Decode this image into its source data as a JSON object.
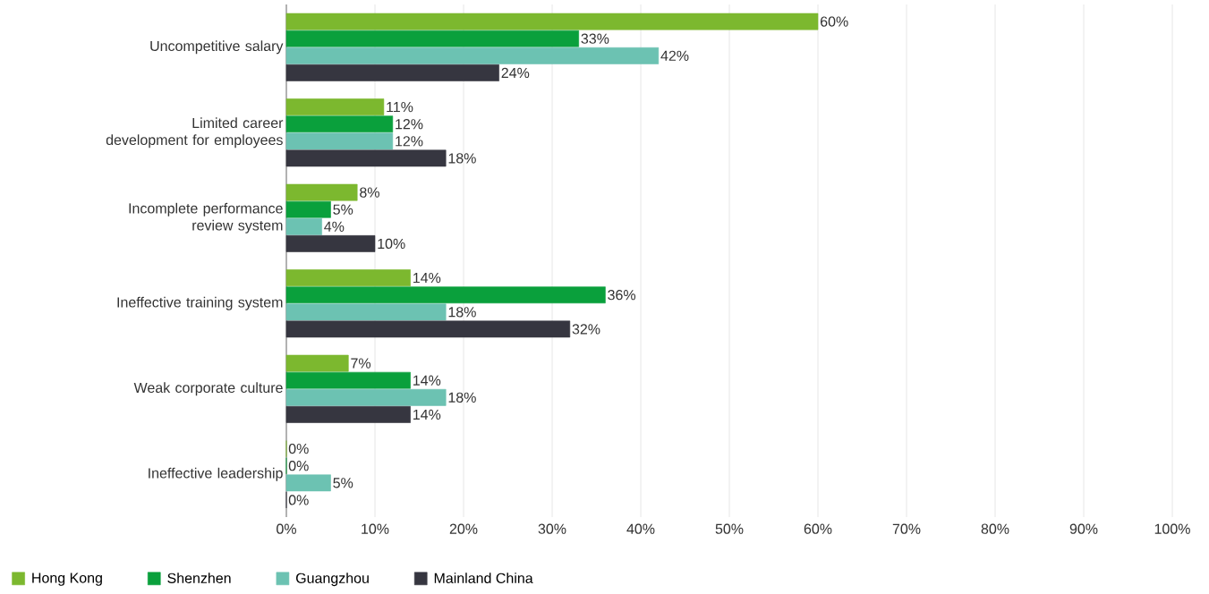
{
  "chart_data": {
    "type": "bar",
    "orientation": "horizontal",
    "categories": [
      "Uncompetitive salary",
      "Limited career development for employees",
      "Incomplete performance review system",
      "Ineffective training system",
      "Weak corporate culture",
      "Ineffective leadership"
    ],
    "series": [
      {
        "name": "Hong Kong",
        "color": "#7cb82f",
        "values": [
          60,
          11,
          8,
          14,
          7,
          0
        ],
        "value_labels": [
          "60%",
          "11%",
          "8%",
          "14%",
          "7%",
          "0%"
        ]
      },
      {
        "name": "Shenzhen",
        "color": "#0aa03c",
        "values": [
          33,
          12,
          5,
          36,
          14,
          0
        ],
        "value_labels": [
          "33%",
          "12%",
          "5%",
          "36%",
          "14%",
          "0%"
        ]
      },
      {
        "name": "Guangzhou",
        "color": "#6cc2b2",
        "values": [
          42,
          12,
          4,
          18,
          18,
          5
        ],
        "value_labels": [
          "42%",
          "12%",
          "4%",
          "18%",
          "18%",
          "5%"
        ]
      },
      {
        "name": "Mainland China",
        "color": "#363640",
        "values": [
          24,
          18,
          10,
          32,
          14,
          0
        ],
        "value_labels": [
          "24%",
          "18%",
          "10%",
          "32%",
          "14%",
          "0%"
        ]
      }
    ],
    "xlim": [
      0,
      100
    ],
    "xticks": [
      {
        "value": 0,
        "label": "0%"
      },
      {
        "value": 10,
        "label": "10%"
      },
      {
        "value": 20,
        "label": "20%"
      },
      {
        "value": 30,
        "label": "30%"
      },
      {
        "value": 40,
        "label": "40%"
      },
      {
        "value": 50,
        "label": "50%"
      },
      {
        "value": 60,
        "label": "60%"
      },
      {
        "value": 70,
        "label": "70%"
      },
      {
        "value": 80,
        "label": "80%"
      },
      {
        "value": 90,
        "label": "90%"
      },
      {
        "value": 100,
        "label": "100%"
      }
    ],
    "grid": "x",
    "legend": "bottom"
  }
}
